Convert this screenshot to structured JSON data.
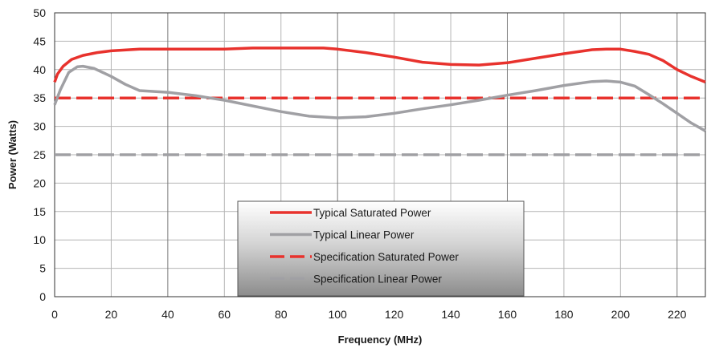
{
  "chart_data": {
    "type": "line",
    "title": "",
    "xlabel": "Frequency (MHz)",
    "ylabel": "Power (Watts)",
    "xlim": [
      0,
      230
    ],
    "ylim": [
      0,
      50
    ],
    "x_ticks": [
      "0",
      "20",
      "40",
      "60",
      "80",
      "100",
      "120",
      "140",
      "160",
      "180",
      "200",
      "220"
    ],
    "y_ticks": [
      "0",
      "5",
      "10",
      "15",
      "20",
      "25",
      "30",
      "35",
      "40",
      "45",
      "50"
    ],
    "x_tick_values": [
      0,
      20,
      40,
      60,
      80,
      100,
      120,
      140,
      160,
      180,
      200,
      220
    ],
    "y_tick_values": [
      0,
      5,
      10,
      15,
      20,
      25,
      30,
      35,
      40,
      45,
      50
    ],
    "grid": true,
    "legend_position": "bottom-center",
    "series": [
      {
        "name": "Typical Saturated Power",
        "color": "#e8322d",
        "style": "solid",
        "x": [
          0,
          1,
          3,
          6,
          10,
          15,
          20,
          30,
          40,
          50,
          60,
          70,
          80,
          90,
          95,
          100,
          110,
          120,
          130,
          140,
          150,
          160,
          170,
          180,
          190,
          195,
          200,
          205,
          210,
          215,
          220,
          225,
          230
        ],
        "y": [
          37.8,
          39.2,
          40.6,
          41.8,
          42.5,
          43.0,
          43.3,
          43.6,
          43.6,
          43.6,
          43.6,
          43.8,
          43.8,
          43.8,
          43.8,
          43.6,
          43.0,
          42.2,
          41.3,
          40.9,
          40.8,
          41.2,
          42.0,
          42.8,
          43.5,
          43.6,
          43.6,
          43.2,
          42.7,
          41.6,
          40.0,
          38.8,
          37.8
        ]
      },
      {
        "name": "Typical Linear Power",
        "color": "#a0a0a4",
        "style": "solid",
        "x": [
          0,
          2,
          5,
          8,
          10,
          14,
          20,
          25,
          30,
          40,
          50,
          60,
          70,
          80,
          90,
          100,
          110,
          120,
          130,
          140,
          150,
          160,
          170,
          180,
          190,
          195,
          200,
          205,
          210,
          215,
          220,
          225,
          230
        ],
        "y": [
          33.8,
          36.4,
          39.5,
          40.5,
          40.6,
          40.2,
          38.8,
          37.4,
          36.3,
          36.0,
          35.4,
          34.6,
          33.6,
          32.6,
          31.8,
          31.5,
          31.7,
          32.3,
          33.1,
          33.8,
          34.6,
          35.5,
          36.3,
          37.2,
          37.9,
          38.0,
          37.8,
          37.1,
          35.6,
          34.0,
          32.3,
          30.6,
          29.2
        ]
      },
      {
        "name": "Specification Saturated Power",
        "color": "#e8322d",
        "style": "dashed",
        "x": [
          0,
          230
        ],
        "y": [
          35,
          35
        ]
      },
      {
        "name": "Specification Linear Power",
        "color": "#a0a0a4",
        "style": "dashed",
        "x": [
          0,
          230
        ],
        "y": [
          25,
          25
        ]
      }
    ]
  }
}
